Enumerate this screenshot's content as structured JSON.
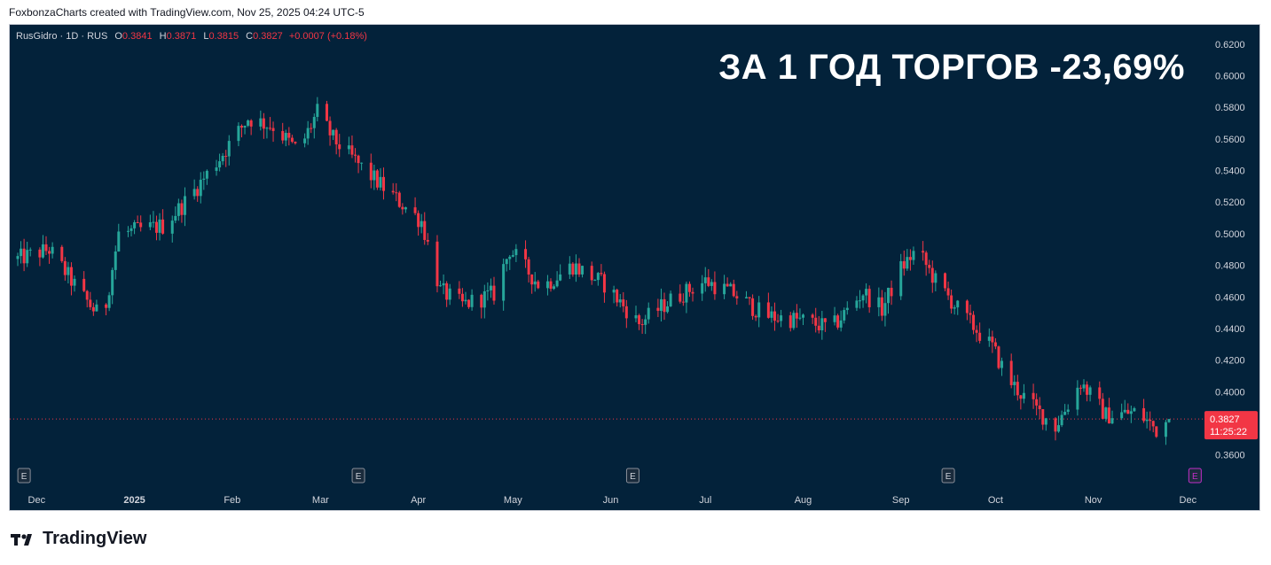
{
  "header": {
    "credit": "FoxbonzaCharts created with TradingView.com, Nov 25, 2025 04:24 UTC-5"
  },
  "legend": {
    "symbol": "RusGidro · 1D · RUS",
    "open_key": "O",
    "open": "0.3841",
    "high_key": "H",
    "high": "0.3871",
    "low_key": "L",
    "low": "0.3815",
    "close_key": "C",
    "close": "0.3827",
    "change": "+0.0007 (+0.18%)"
  },
  "headline": "ЗА 1 ГОД ТОРГОВ -23,69%",
  "price_badge": {
    "price": "0.3827",
    "countdown": "11:25:22"
  },
  "earnings_marker": "E",
  "brand": "TradingView",
  "colors": {
    "background": "#03223a",
    "up": "#26a69a",
    "down": "#f23645",
    "badge": "#f23645",
    "future_event": "#c22fc8"
  },
  "chart_data": {
    "type": "candlestick",
    "title": "ЗА 1 ГОД ТОРГОВ -23,69%",
    "ylim": [
      0.35,
      0.62
    ],
    "y_ticks": [
      "0.6200",
      "0.6000",
      "0.5800",
      "0.5600",
      "0.5400",
      "0.5200",
      "0.5000",
      "0.4800",
      "0.4600",
      "0.4400",
      "0.4200",
      "0.4000",
      "0.3600"
    ],
    "x_ticks": [
      "Dec",
      "2025",
      "Feb",
      "Mar",
      "Apr",
      "May",
      "Jun",
      "Jul",
      "Aug",
      "Sep",
      "Oct",
      "Nov",
      "Dec"
    ],
    "last_price": 0.3827,
    "trend_points": [
      {
        "date": "2024-11-25",
        "value": 0.484
      },
      {
        "date": "2024-12-05",
        "value": 0.49
      },
      {
        "date": "2024-12-15",
        "value": 0.462
      },
      {
        "date": "2024-12-22",
        "value": 0.445
      },
      {
        "date": "2024-12-27",
        "value": 0.5
      },
      {
        "date": "2025-01-10",
        "value": 0.505
      },
      {
        "date": "2025-01-18",
        "value": 0.522
      },
      {
        "date": "2025-01-28",
        "value": 0.548
      },
      {
        "date": "2025-02-06",
        "value": 0.573
      },
      {
        "date": "2025-02-14",
        "value": 0.568
      },
      {
        "date": "2025-02-22",
        "value": 0.552
      },
      {
        "date": "2025-02-28",
        "value": 0.577
      },
      {
        "date": "2025-03-05",
        "value": 0.56
      },
      {
        "date": "2025-03-15",
        "value": 0.54
      },
      {
        "date": "2025-03-25",
        "value": 0.522
      },
      {
        "date": "2025-04-02",
        "value": 0.508
      },
      {
        "date": "2025-04-08",
        "value": 0.464
      },
      {
        "date": "2025-04-15",
        "value": 0.455
      },
      {
        "date": "2025-04-25",
        "value": 0.462
      },
      {
        "date": "2025-04-30",
        "value": 0.49
      },
      {
        "date": "2025-05-10",
        "value": 0.466
      },
      {
        "date": "2025-05-20",
        "value": 0.48
      },
      {
        "date": "2025-05-30",
        "value": 0.468
      },
      {
        "date": "2025-06-10",
        "value": 0.443
      },
      {
        "date": "2025-06-20",
        "value": 0.458
      },
      {
        "date": "2025-07-01",
        "value": 0.47
      },
      {
        "date": "2025-07-10",
        "value": 0.462
      },
      {
        "date": "2025-07-20",
        "value": 0.448
      },
      {
        "date": "2025-08-01",
        "value": 0.445
      },
      {
        "date": "2025-08-10",
        "value": 0.44
      },
      {
        "date": "2025-08-20",
        "value": 0.463
      },
      {
        "date": "2025-08-26",
        "value": 0.452
      },
      {
        "date": "2025-09-01",
        "value": 0.478
      },
      {
        "date": "2025-09-06",
        "value": 0.49
      },
      {
        "date": "2025-09-12",
        "value": 0.47
      },
      {
        "date": "2025-09-20",
        "value": 0.45
      },
      {
        "date": "2025-09-30",
        "value": 0.428
      },
      {
        "date": "2025-10-05",
        "value": 0.408
      },
      {
        "date": "2025-10-12",
        "value": 0.392
      },
      {
        "date": "2025-10-20",
        "value": 0.378
      },
      {
        "date": "2025-10-28",
        "value": 0.406
      },
      {
        "date": "2025-11-05",
        "value": 0.385
      },
      {
        "date": "2025-11-15",
        "value": 0.387
      },
      {
        "date": "2025-11-21",
        "value": 0.376
      },
      {
        "date": "2025-11-25",
        "value": 0.3827
      }
    ]
  }
}
